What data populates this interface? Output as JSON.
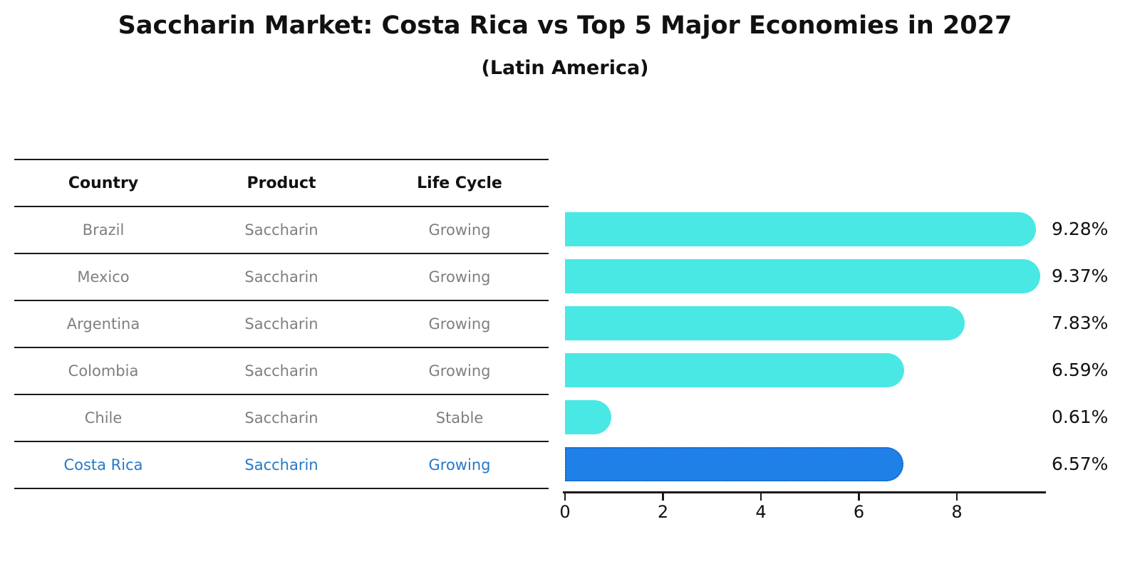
{
  "header": {
    "title": "Saccharin Market: Costa Rica vs Top 5 Major Economies in 2027",
    "subtitle": "(Latin America)"
  },
  "table": {
    "columns": [
      "Country",
      "Product",
      "Life Cycle"
    ],
    "rows": [
      {
        "country": "Brazil",
        "product": "Saccharin",
        "life_cycle": "Growing",
        "highlighted": false
      },
      {
        "country": "Mexico",
        "product": "Saccharin",
        "life_cycle": "Growing",
        "highlighted": false
      },
      {
        "country": "Argentina",
        "product": "Saccharin",
        "life_cycle": "Growing",
        "highlighted": false
      },
      {
        "country": "Colombia",
        "product": "Saccharin",
        "life_cycle": "Growing",
        "highlighted": false
      },
      {
        "country": "Chile",
        "product": "Saccharin",
        "life_cycle": "Stable",
        "highlighted": false
      },
      {
        "country": "Costa Rica",
        "product": "Saccharin",
        "life_cycle": "Growing",
        "highlighted": true
      }
    ]
  },
  "chart_data": {
    "type": "bar",
    "orientation": "horizontal",
    "categories": [
      "Brazil",
      "Mexico",
      "Argentina",
      "Colombia",
      "Chile",
      "Costa Rica"
    ],
    "values": [
      9.28,
      9.37,
      7.83,
      6.59,
      0.61,
      6.57
    ],
    "value_labels": [
      "9.28%",
      "9.37%",
      "7.83%",
      "6.59%",
      "0.61%",
      "6.57%"
    ],
    "title": "Saccharin Market: Costa Rica vs Top 5 Major Economies in 2027",
    "subtitle": "(Latin America)",
    "xlabel": "",
    "ylabel": "",
    "xlim": [
      0,
      9.8
    ],
    "xticks": [
      "0",
      "2",
      "4",
      "6",
      "8"
    ],
    "grid": false,
    "legend": false,
    "bar_color": "#4AE8E4",
    "highlight_color": "#1F80E8",
    "highlight_index": 5,
    "highlight_border_color": "#1565CD",
    "text_gray": "#7f7f7f",
    "highlight_text_color": "#2678C8"
  }
}
